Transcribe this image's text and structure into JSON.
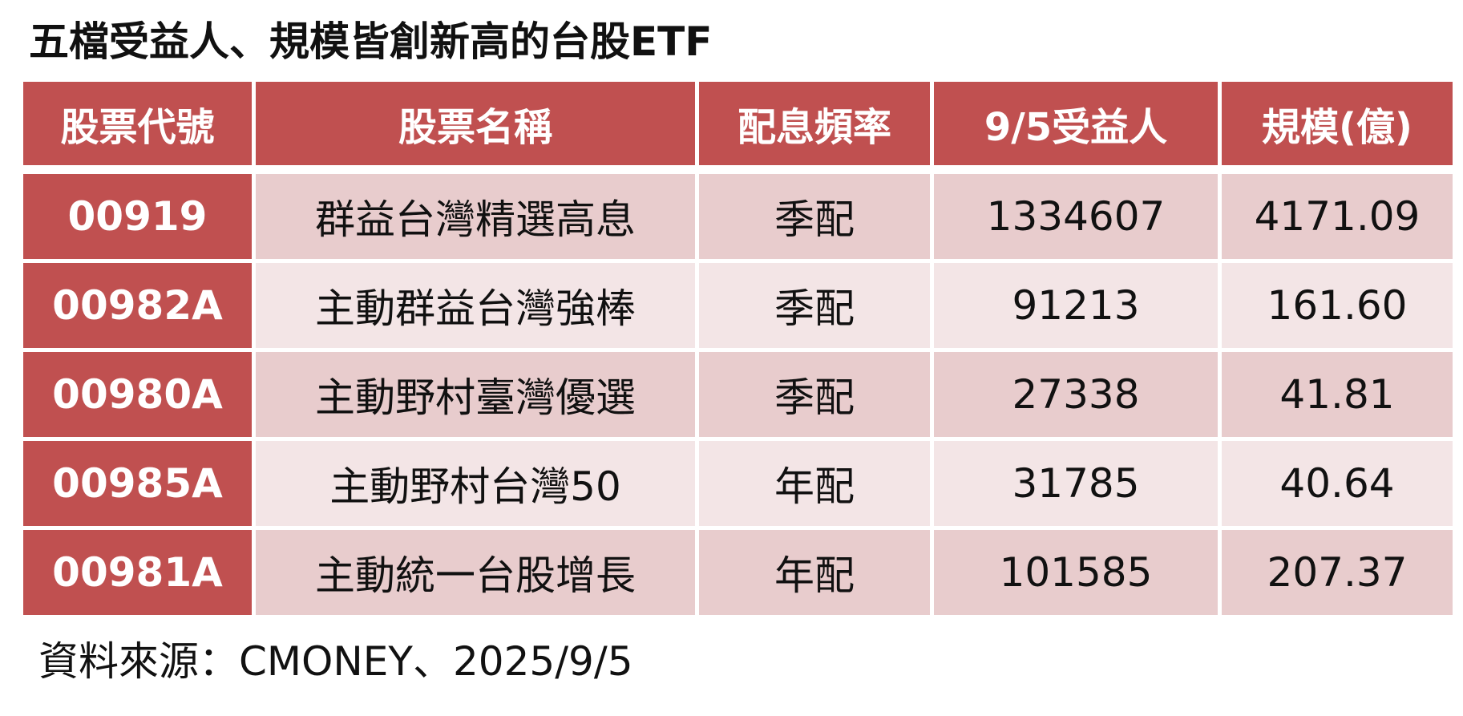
{
  "title": "五檔受益人、規模皆創新高的台股ETF",
  "colors": {
    "header_bg": "#c05050",
    "code_bg": "#c05050",
    "row_odd_bg": "#e8cccd",
    "row_even_bg": "#f3e5e6"
  },
  "chart_data": {
    "type": "table",
    "title": "五檔受益人、規模皆創新高的台股ETF",
    "columns": [
      "股票代號",
      "股票名稱",
      "配息頻率",
      "9/5受益人",
      "規模(億)"
    ],
    "rows": [
      [
        "00919",
        "群益台灣精選高息",
        "季配",
        "1334607",
        "4171.09"
      ],
      [
        "00982A",
        "主動群益台灣強棒",
        "季配",
        "91213",
        "161.60"
      ],
      [
        "00980A",
        "主動野村臺灣優選",
        "季配",
        "27338",
        "41.81"
      ],
      [
        "00985A",
        "主動野村台灣50",
        "年配",
        "31785",
        "40.64"
      ],
      [
        "00981A",
        "主動統一台股增長",
        "年配",
        "101585",
        "207.37"
      ]
    ]
  },
  "source": "資料來源：CMONEY、2025/9/5"
}
